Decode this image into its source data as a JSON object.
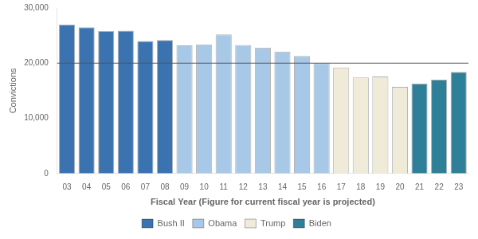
{
  "chart_data": {
    "type": "bar",
    "categories": [
      "03",
      "04",
      "05",
      "06",
      "07",
      "08",
      "09",
      "10",
      "11",
      "12",
      "13",
      "14",
      "15",
      "16",
      "17",
      "18",
      "19",
      "20",
      "21",
      "22",
      "23"
    ],
    "series": [
      {
        "name": "Bush II",
        "color": "#3b72b0",
        "values": [
          27000,
          26500,
          25800,
          25900,
          24000,
          24200,
          null,
          null,
          null,
          null,
          null,
          null,
          null,
          null,
          null,
          null,
          null,
          null,
          null,
          null,
          null
        ]
      },
      {
        "name": "Obama",
        "color": "#a8c8e8",
        "values": [
          null,
          null,
          null,
          null,
          null,
          null,
          23200,
          23400,
          25200,
          23300,
          22800,
          22100,
          21300,
          20000,
          null,
          null,
          null,
          null,
          null,
          null,
          null
        ]
      },
      {
        "name": "Trump",
        "color": "#f0ead8",
        "values": [
          null,
          null,
          null,
          null,
          null,
          null,
          null,
          null,
          null,
          null,
          null,
          null,
          null,
          null,
          19200,
          17400,
          17600,
          15700,
          null,
          null,
          null
        ]
      },
      {
        "name": "Biden",
        "color": "#2e7f98",
        "values": [
          null,
          null,
          null,
          null,
          null,
          null,
          null,
          null,
          null,
          null,
          null,
          null,
          null,
          null,
          null,
          null,
          null,
          null,
          16300,
          17000,
          18400
        ]
      }
    ],
    "xlabel": "Fiscal Year (Figure for current fiscal year is projected)",
    "ylabel": "Convictions",
    "ylim": [
      0,
      30000
    ],
    "yticks": [
      0,
      {
        "value": 10000,
        "label": "10,000"
      },
      {
        "value": 20000,
        "label": "20,000"
      },
      {
        "value": 30000,
        "label": "30,000"
      }
    ],
    "reference_line": {
      "value": 20000,
      "color": "#555555"
    },
    "grid": false,
    "legend": "bottom"
  }
}
